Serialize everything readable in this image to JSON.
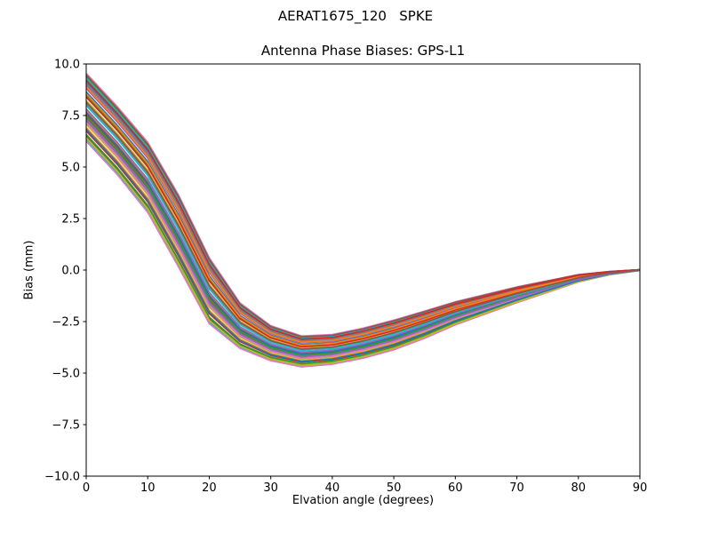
{
  "figure": {
    "suptitle": "AERAT1675_120   SPKE",
    "background": "#ffffff",
    "spine_color": "#000000"
  },
  "chart_data": {
    "type": "line",
    "title": "Antenna Phase Biases: GPS-L1",
    "xlabel": "Elvation angle (degrees)",
    "ylabel": "Bias (mm)",
    "xlim": [
      0,
      90
    ],
    "ylim": [
      -10,
      10
    ],
    "xticks": [
      0,
      10,
      20,
      30,
      40,
      50,
      60,
      70,
      80,
      90
    ],
    "xtick_labels": [
      "0",
      "10",
      "20",
      "30",
      "40",
      "50",
      "60",
      "70",
      "80",
      "90"
    ],
    "yticks": [
      10.0,
      7.5,
      5.0,
      2.5,
      0.0,
      -2.5,
      -5.0,
      -7.5,
      -10.0
    ],
    "ytick_labels": [
      "10.0",
      "7.5",
      "5.0",
      "2.5",
      "0.0",
      "−2.5",
      "−5.0",
      "−7.5",
      "−10.0"
    ],
    "grid": false,
    "legend": "none",
    "x": [
      0,
      5,
      10,
      15,
      20,
      25,
      30,
      35,
      40,
      45,
      50,
      55,
      60,
      65,
      70,
      75,
      80,
      85,
      90
    ],
    "bundle": {
      "description": "Dense bundle of antenna phase-bias curves vs elevation; each series value = base[j] + factor * spread[j] (mm)",
      "base": [
        7.9,
        6.3,
        4.5,
        1.9,
        -1.0,
        -2.7,
        -3.55,
        -3.95,
        -3.85,
        -3.55,
        -3.15,
        -2.65,
        -2.1,
        -1.65,
        -1.2,
        -0.8,
        -0.4,
        -0.15,
        0.0
      ],
      "spread": [
        1.65,
        1.65,
        1.7,
        1.75,
        1.6,
        1.1,
        0.85,
        0.75,
        0.72,
        0.73,
        0.72,
        0.66,
        0.56,
        0.47,
        0.38,
        0.28,
        0.18,
        0.08,
        0.02
      ],
      "factors": [
        0.45,
        -0.6,
        0.9,
        -0.2,
        0.65,
        -0.85,
        1.0,
        -0.4,
        0.2,
        -0.95,
        0.75,
        -0.1,
        0.35,
        -0.7,
        0.55,
        -0.3,
        -1.0,
        0.1,
        -0.5,
        0.85,
        -0.15,
        0.6,
        -0.8,
        0.3,
        -0.05,
        0.95,
        -0.45,
        0.7,
        -0.9,
        0.05,
        -0.65,
        0.4,
        -0.25,
        0.8,
        -0.35,
        0.15
      ]
    },
    "colors": [
      "#1f77b4",
      "#ff7f0e",
      "#2ca02c",
      "#d62728",
      "#9467bd",
      "#8c564b",
      "#e377c2",
      "#7f7f7f",
      "#bcbd22",
      "#17becf"
    ],
    "line_width": 1.7
  }
}
